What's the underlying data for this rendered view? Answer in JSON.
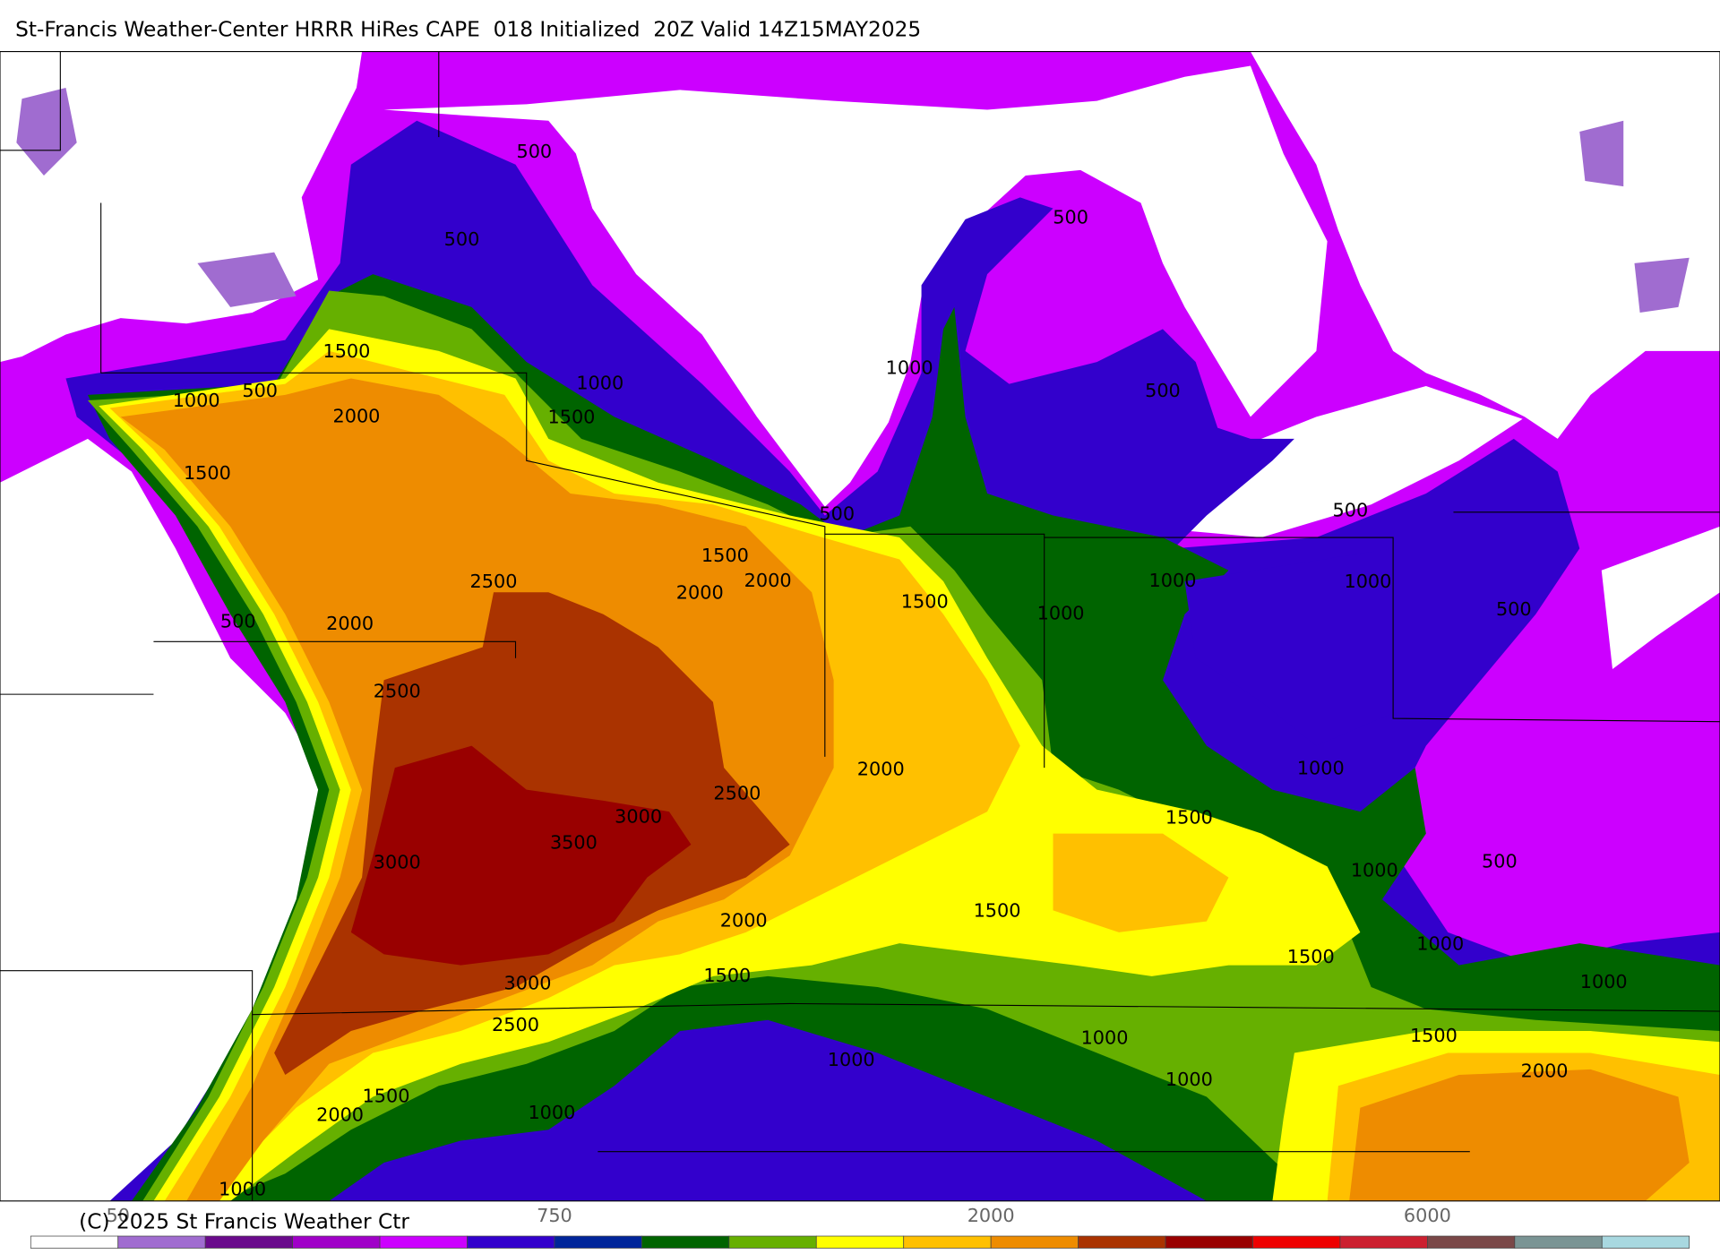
{
  "title": "St-Francis Weather-Center HRRR HiRes CAPE  018 Initialized  20Z Valid 14Z15MAY2025",
  "contour_labels": [
    "500",
    "500",
    "1500",
    "1000",
    "500",
    "2000",
    "1000",
    "1500",
    "1500",
    "500",
    "1000",
    "500",
    "500",
    "500",
    "1500",
    "2000",
    "2000",
    "2500",
    "1500",
    "1000",
    "1000",
    "1000",
    "500",
    "500",
    "2000",
    "2500",
    "2000",
    "1000",
    "2500",
    "3000",
    "3500",
    "1500",
    "3000",
    "1000",
    "500",
    "1500",
    "2000",
    "1000",
    "1500",
    "1500",
    "3000",
    "1000",
    "2500",
    "1000",
    "1500",
    "1000",
    "2000",
    "1000",
    "1500",
    "1000",
    "2000",
    "1000"
  ],
  "colorbar": {
    "colors": [
      "#ffffff",
      "#a06cd0",
      "#6a0a8c",
      "#a000c8",
      "#cc00ff",
      "#3300cc",
      "#00259a",
      "#006400",
      "#66b000",
      "#ffff00",
      "#ffc000",
      "#ee8c00",
      "#aa3300",
      "#990000",
      "#ee0000",
      "#cc2030",
      "#7a4848",
      "#7a9494",
      "#a8d8e0"
    ],
    "labels": [
      "50",
      "750",
      "2000",
      "6000"
    ]
  },
  "copyright": "(C) 2025 St Francis Weather Ctr"
}
